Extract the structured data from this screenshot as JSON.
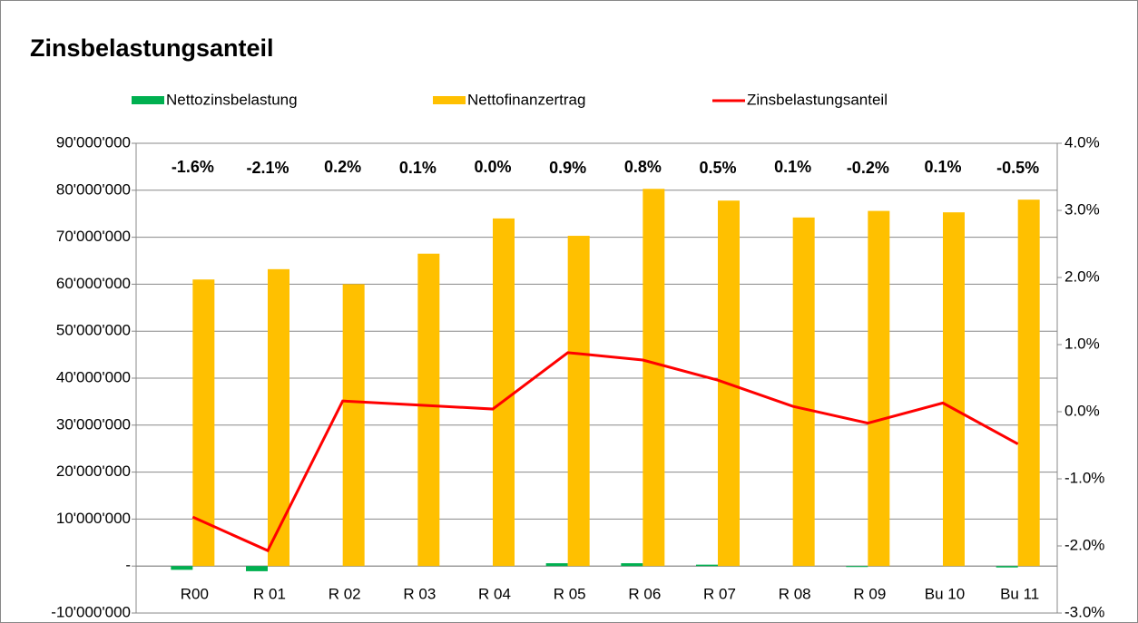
{
  "chart_data": {
    "type": "bar",
    "title": "Zinsbelastungsanteil",
    "categories": [
      "R00",
      "R 01",
      "R 02",
      "R 03",
      "R 04",
      "R 05",
      "R 06",
      "R 07",
      "R 08",
      "R 09",
      "Bu 10",
      "Bu 11"
    ],
    "series": [
      {
        "name": "Nettozinsbelastung",
        "type": "bar",
        "color": "#00b050",
        "values": [
          -800000,
          -1100000,
          0,
          0,
          0,
          600000,
          600000,
          300000,
          0,
          -200000,
          0,
          -300000
        ]
      },
      {
        "name": "Nettofinanzertrag",
        "type": "bar",
        "color": "#ffc000",
        "values": [
          61000000,
          63200000,
          60000000,
          66500000,
          74000000,
          70300000,
          80300000,
          77800000,
          74200000,
          75600000,
          75300000,
          78000000
        ]
      },
      {
        "name": "Zinsbelastungsanteil",
        "type": "line",
        "axis": "y2",
        "color": "#ff0000",
        "values": [
          -1.57,
          -2.07,
          0.16,
          0.1,
          0.04,
          0.88,
          0.77,
          0.47,
          0.08,
          -0.17,
          0.13,
          -0.48
        ],
        "value_labels": [
          "-1.6%",
          "-2.1%",
          "0.2%",
          "0.1%",
          "0.0%",
          "0.9%",
          "0.8%",
          "0.5%",
          "0.1%",
          "-0.2%",
          "0.1%",
          "-0.5%"
        ]
      }
    ],
    "ylim": [
      -10000000,
      90000000
    ],
    "yticks": [
      {
        "value": -10000000,
        "label": "-10'000'000"
      },
      {
        "value": 0,
        "label": "-"
      },
      {
        "value": 10000000,
        "label": "10'000'000"
      },
      {
        "value": 20000000,
        "label": "20'000'000"
      },
      {
        "value": 30000000,
        "label": "30'000'000"
      },
      {
        "value": 40000000,
        "label": "40'000'000"
      },
      {
        "value": 50000000,
        "label": "50'000'000"
      },
      {
        "value": 60000000,
        "label": "60'000'000"
      },
      {
        "value": 70000000,
        "label": "70'000'000"
      },
      {
        "value": 80000000,
        "label": "80'000'000"
      },
      {
        "value": 90000000,
        "label": "90'000'000"
      }
    ],
    "y2lim": [
      -3,
      4
    ],
    "y2ticks": [
      {
        "value": -3,
        "label": "-3.0%"
      },
      {
        "value": -2,
        "label": "-2.0%"
      },
      {
        "value": -1,
        "label": "-1.0%"
      },
      {
        "value": 0,
        "label": "0.0%"
      },
      {
        "value": 1,
        "label": "1.0%"
      },
      {
        "value": 2,
        "label": "2.0%"
      },
      {
        "value": 3,
        "label": "3.0%"
      },
      {
        "value": 4,
        "label": "4.0%"
      }
    ],
    "grid": true,
    "legend": "top"
  }
}
